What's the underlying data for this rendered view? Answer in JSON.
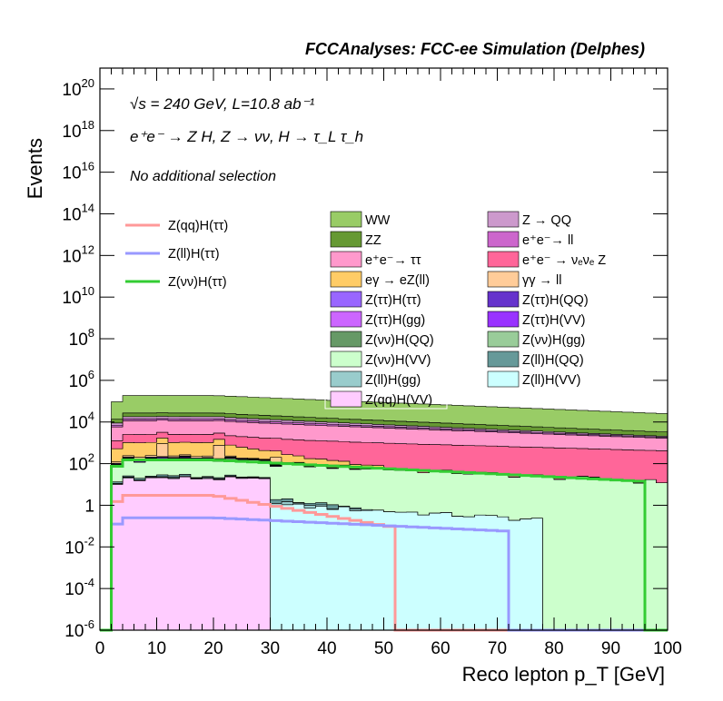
{
  "chart_data": {
    "type": "histogram",
    "title": "FCCAnalyses: FCC-ee Simulation (Delphes)",
    "annotations": {
      "energy": "√s = 240 GeV, L=10.8 ab⁻¹",
      "process": "e⁺e⁻ → Z H, Z → νν, H → τ_L τ_h",
      "selection": "No additional selection"
    },
    "xlabel": "Reco lepton p_T [GeV]",
    "ylabel": "Events",
    "xlim": [
      0,
      100
    ],
    "ylim": [
      1e-06,
      1e+21
    ],
    "yscale": "log",
    "x_ticks": [
      "0",
      "10",
      "20",
      "30",
      "40",
      "50",
      "60",
      "70",
      "80",
      "90",
      "100"
    ],
    "y_ticks": [
      {
        "base": "10",
        "exp": "-6"
      },
      {
        "base": "10",
        "exp": "-4"
      },
      {
        "base": "10",
        "exp": "-2"
      },
      {
        "base": "1",
        "exp": ""
      },
      {
        "base": "10",
        "exp": "2"
      },
      {
        "base": "10",
        "exp": "4"
      },
      {
        "base": "10",
        "exp": "6"
      },
      {
        "base": "10",
        "exp": "8"
      },
      {
        "base": "10",
        "exp": "10"
      },
      {
        "base": "10",
        "exp": "12"
      },
      {
        "base": "10",
        "exp": "14"
      },
      {
        "base": "10",
        "exp": "16"
      },
      {
        "base": "10",
        "exp": "18"
      },
      {
        "base": "10",
        "exp": "20"
      }
    ],
    "bin_width": 2,
    "stacked_backgrounds": [
      {
        "name": "Z(qq)H(VV)",
        "color": "#ffccff",
        "profile": "shelf",
        "peak": 25,
        "end": 30,
        "tail": 40
      },
      {
        "name": "Z(ll)H(VV)",
        "color": "#ccffff",
        "profile": "shelf",
        "peak": 2,
        "end": 78,
        "tail": 28
      },
      {
        "name": "Z(ll)H(gg)",
        "color": "#99cccc",
        "profile": "spiky",
        "peak": 1,
        "end": 50,
        "tail": 9
      },
      {
        "name": "Z(ll)H(QQ)",
        "color": "#669999",
        "profile": "spiky",
        "peak": 3,
        "end": 46,
        "tail": 8
      },
      {
        "name": "Z(νν)H(VV)",
        "color": "#ccffcc",
        "profile": "shelf",
        "peak": 160,
        "end": 100,
        "tail": 35
      },
      {
        "name": "Z(νν)H(gg)",
        "color": "#99cc99",
        "profile": "spiky",
        "peak": 1,
        "end": 40,
        "tail": 7
      },
      {
        "name": "Z(νν)H(QQ)",
        "color": "#669966",
        "profile": "spiky",
        "peak": 3,
        "end": 42,
        "tail": 9
      },
      {
        "name": "Z(ττ)H(VV)",
        "color": "#9933ff",
        "profile": "smooth",
        "peak": 20,
        "end": 52,
        "tail": 9
      },
      {
        "name": "Z(ττ)H(gg)",
        "color": "#cc66ff",
        "profile": "smooth",
        "peak": 4,
        "end": 50,
        "tail": 8
      },
      {
        "name": "Z(ττ)H(QQ)",
        "color": "#6633cc",
        "profile": "smooth",
        "peak": 8,
        "end": 52,
        "tail": 9
      },
      {
        "name": "Z(ττ)H(ττ)",
        "color": "#9966ff",
        "profile": "smooth",
        "peak": 15,
        "end": 52,
        "tail": 9
      },
      {
        "name": "γγ → ll",
        "color": "#ffcc99",
        "profile": "spike",
        "peak": 700,
        "end": 50,
        "tail": 6
      },
      {
        "name": "eγ → eZ(ll)",
        "color": "#ffcc66",
        "profile": "smooth",
        "peak": 800,
        "end": 50,
        "tail": 8
      },
      {
        "name": "e⁺e⁻ → ν_e ν_e Z",
        "color": "#ff6699",
        "profile": "smooth",
        "peak": 1500,
        "end": 100,
        "tail": 60
      },
      {
        "name": "e⁺e⁻ → ττ",
        "color": "#ff99cc",
        "profile": "smooth",
        "peak": 9000,
        "end": 100,
        "tail": 40
      },
      {
        "name": "e⁺e⁻ → ll",
        "color": "#cc66cc",
        "profile": "smooth",
        "peak": 2500,
        "end": 100,
        "tail": 30
      },
      {
        "name": "Z → QQ",
        "color": "#cc99cc",
        "profile": "smooth",
        "peak": 4000,
        "end": 100,
        "tail": 28
      },
      {
        "name": "ZZ",
        "color": "#669933",
        "profile": "smooth",
        "peak": 9000,
        "end": 100,
        "tail": 40
      },
      {
        "name": "WW",
        "color": "#99cc66",
        "profile": "smooth",
        "peak": 160000,
        "end": 100,
        "tail": 40
      }
    ],
    "signals": [
      {
        "name": "Z(qq)H(ττ)",
        "color": "#ff9999",
        "peak": 3,
        "end": 52,
        "tail": 9
      },
      {
        "name": "Z(ll)H(ττ)",
        "color": "#9999ff",
        "peak": 0.25,
        "end": 72,
        "tail": 35
      },
      {
        "name": "Z(νν)H(ττ)",
        "color": "#33cc33",
        "peak": 150,
        "end": 96,
        "tail": 32
      }
    ],
    "legend_left_order": [
      "Z(qq)H(ττ)",
      "Z(ll)H(ττ)",
      "Z(νν)H(ττ)"
    ],
    "legend_right_order": [
      "WW",
      "Z → QQ",
      "ZZ",
      "e⁺e⁻→ ll",
      "e⁺e⁻→ ττ",
      "e⁺e⁻ → νₑνₑ Z",
      "eγ → eZ(ll)",
      "γγ → ll",
      "Z(ττ)H(ττ)",
      "Z(ττ)H(QQ)",
      "Z(ττ)H(gg)",
      "Z(ττ)H(VV)",
      "Z(νν)H(QQ)",
      "Z(νν)H(gg)",
      "Z(νν)H(VV)",
      "Z(ll)H(QQ)",
      "Z(ll)H(gg)",
      "Z(ll)H(VV)",
      "Z(qq)H(VV)"
    ],
    "legend_left_placement": "upper-left",
    "legend_right_placement": "upper-right",
    "grid": false
  }
}
